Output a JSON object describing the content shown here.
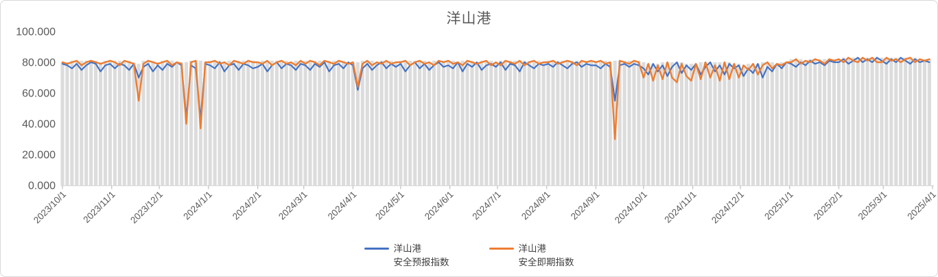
{
  "chart_data": {
    "type": "line",
    "title": "洋山港",
    "start_date": "2023/10/1",
    "end_date": "2025/4/1",
    "sample_interval_days": 3,
    "ylim": [
      0,
      100
    ],
    "grid": false,
    "legend_position": "bottom-center",
    "y_tick_labels": [
      "0.000",
      "20.000",
      "40.000",
      "60.000",
      "80.000",
      "100.000"
    ],
    "y_tick_values": [
      0,
      20,
      40,
      60,
      80,
      100
    ],
    "x_tick_labels": [
      "2023/10/1",
      "2023/11/1",
      "2023/12/1",
      "2024/1/1",
      "2024/2/1",
      "2024/3/1",
      "2024/4/1",
      "2024/5/1",
      "2024/6/1",
      "2024/7/1",
      "2024/8/1",
      "2024/9/1",
      "2024/10/1",
      "2024/11/1",
      "2024/12/1",
      "2025/1/1",
      "2025/2/1",
      "2025/3/1",
      "2025/4/1"
    ],
    "x_tick_day_offsets": [
      0,
      31,
      61,
      92,
      123,
      152,
      183,
      213,
      244,
      274,
      305,
      336,
      366,
      397,
      427,
      458,
      489,
      517,
      548
    ],
    "total_days": 548,
    "series": [
      {
        "name": "洋山港安全预报指数",
        "legend_line1": "洋山港",
        "legend_line2": "安全预报指数",
        "color": "#4472C4",
        "values": [
          79,
          78,
          76,
          79,
          75,
          78,
          80,
          79,
          74,
          78,
          79,
          76,
          79,
          78,
          75,
          79,
          70,
          77,
          79,
          74,
          78,
          75,
          79,
          77,
          80,
          78,
          44,
          78,
          76,
          43,
          79,
          78,
          76,
          80,
          74,
          78,
          79,
          75,
          79,
          78,
          76,
          77,
          79,
          74,
          78,
          80,
          76,
          79,
          78,
          75,
          79,
          78,
          75,
          79,
          77,
          80,
          74,
          78,
          79,
          76,
          80,
          78,
          62,
          76,
          79,
          75,
          78,
          80,
          76,
          79,
          77,
          79,
          74,
          78,
          80,
          76,
          79,
          75,
          78,
          80,
          77,
          78,
          76,
          80,
          74,
          79,
          77,
          80,
          75,
          78,
          79,
          77,
          80,
          75,
          79,
          78,
          74,
          80,
          78,
          76,
          79,
          78,
          79,
          77,
          80,
          78,
          76,
          79,
          80,
          77,
          79,
          78,
          78,
          76,
          79,
          77,
          55,
          78,
          79,
          77,
          79,
          78,
          76,
          72,
          79,
          74,
          78,
          71,
          77,
          80,
          73,
          78,
          75,
          79,
          72,
          77,
          80,
          74,
          78,
          72,
          79,
          76,
          78,
          71,
          76,
          73,
          79,
          70,
          77,
          74,
          79,
          76,
          80,
          79,
          77,
          80,
          78,
          81,
          79,
          80,
          78,
          81,
          80,
          80,
          82,
          79,
          81,
          83,
          80,
          82,
          80,
          83,
          81,
          79,
          82,
          80,
          83,
          81,
          79,
          82,
          80,
          81,
          80
        ]
      },
      {
        "name": "洋山港安全即期指数",
        "legend_line1": "洋山港",
        "legend_line2": "安全即期指数",
        "color": "#ED7D31",
        "values": [
          80,
          79,
          80,
          81,
          78,
          80,
          81,
          80,
          79,
          80,
          81,
          80,
          78,
          81,
          80,
          79,
          55,
          79,
          81,
          80,
          79,
          80,
          81,
          78,
          80,
          79,
          40,
          80,
          81,
          37,
          80,
          80,
          81,
          79,
          80,
          78,
          81,
          80,
          79,
          81,
          80,
          80,
          79,
          81,
          78,
          80,
          81,
          79,
          80,
          78,
          81,
          79,
          81,
          80,
          78,
          81,
          80,
          79,
          81,
          80,
          79,
          80,
          64,
          79,
          81,
          78,
          80,
          79,
          81,
          79,
          80,
          80,
          81,
          78,
          80,
          81,
          79,
          80,
          78,
          81,
          80,
          81,
          79,
          80,
          78,
          81,
          80,
          79,
          80,
          81,
          78,
          80,
          78,
          81,
          80,
          79,
          81,
          78,
          80,
          81,
          79,
          80,
          80,
          81,
          79,
          80,
          81,
          80,
          78,
          81,
          80,
          81,
          80,
          81,
          79,
          80,
          30,
          81,
          80,
          79,
          81,
          80,
          70,
          79,
          68,
          78,
          69,
          80,
          70,
          67,
          79,
          71,
          68,
          79,
          69,
          80,
          70,
          78,
          68,
          80,
          69,
          79,
          70,
          78,
          75,
          79,
          72,
          78,
          80,
          76,
          79,
          78,
          80,
          80,
          82,
          79,
          81,
          80,
          82,
          81,
          79,
          82,
          81,
          82,
          80,
          83,
          81,
          80,
          83,
          81,
          83,
          80,
          80,
          83,
          81,
          82,
          80,
          82,
          83,
          80,
          82,
          81,
          82
        ]
      }
    ],
    "background_bars": {
      "color": "#dcdcdc",
      "note": "gray daily columns behind the lines; top follows the upper envelope of both series"
    },
    "axis": {
      "line_color": "#d9d9d9",
      "tick_color": "#bfbfbf",
      "label_color": "#595959"
    },
    "title_color": "#5a5a5a"
  }
}
